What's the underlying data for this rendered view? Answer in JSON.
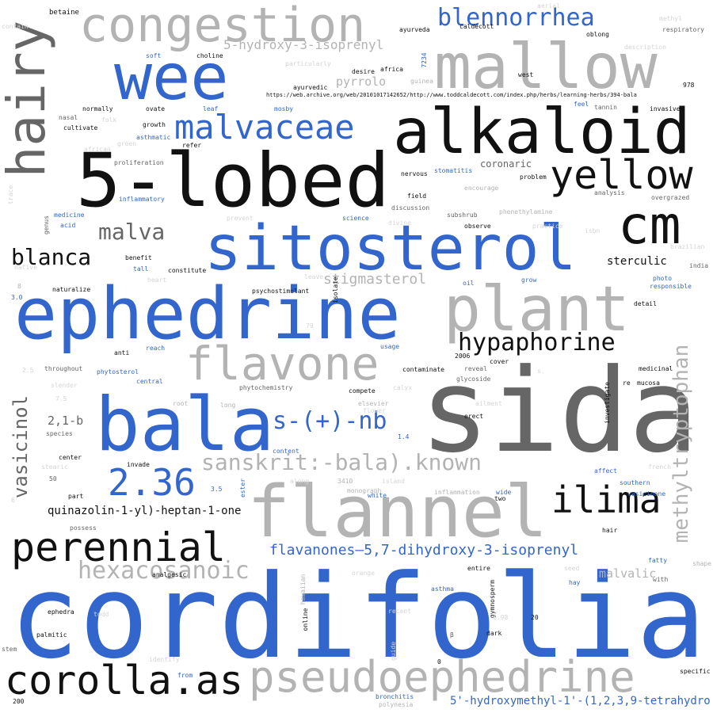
{
  "palette": {
    "blue": "#3366cc",
    "black": "#111111",
    "darkgray": "#666666",
    "gray": "#b3b3b3",
    "lightgray": "#d4d4d4"
  },
  "words": [
    {
      "text": "cordifolia",
      "color": "blue"
    },
    {
      "text": "sida",
      "color": "darkgray"
    },
    {
      "text": "5-lobed",
      "color": "black"
    },
    {
      "text": "ephedrine",
      "color": "blue"
    },
    {
      "text": "flannel",
      "color": "gray"
    },
    {
      "text": "sitosterol",
      "color": "blue"
    },
    {
      "text": "alkaloid",
      "color": "black"
    },
    {
      "text": "mallow",
      "color": "gray"
    },
    {
      "text": "bala",
      "color": "blue"
    },
    {
      "text": "wee",
      "color": "blue"
    },
    {
      "text": "hairy",
      "color": "darkgray"
    },
    {
      "text": "plant",
      "color": "gray"
    },
    {
      "text": "congestion",
      "color": "gray"
    },
    {
      "text": "pseudoephedrine",
      "color": "gray"
    },
    {
      "text": "cm",
      "color": "black"
    },
    {
      "text": "corolla.as",
      "color": "black"
    },
    {
      "text": "flavone",
      "color": "gray"
    },
    {
      "text": "yellow",
      "color": "black"
    },
    {
      "text": "malvaceae",
      "color": "blue"
    },
    {
      "text": "perennial",
      "color": "black"
    },
    {
      "text": "ilima",
      "color": "black"
    },
    {
      "text": "2.36",
      "color": "blue"
    },
    {
      "text": "blennorrhea",
      "color": "blue"
    },
    {
      "text": "hypaphorine",
      "color": "black"
    },
    {
      "text": "hexacosanoic",
      "color": "gray"
    },
    {
      "text": "s-(+)-nb",
      "color": "blue"
    },
    {
      "text": "sanskrit:-bala).known",
      "color": "gray"
    },
    {
      "text": "methyltryptophan",
      "color": "gray"
    },
    {
      "text": "vasicinol",
      "color": "darkgray"
    },
    {
      "text": "malva",
      "color": "darkgray"
    },
    {
      "text": "blanca",
      "color": "black"
    },
    {
      "text": "flavanones—5,7-dihydroxy-3-isoprenyl",
      "color": "blue"
    },
    {
      "text": "stigmasterol",
      "color": "gray"
    },
    {
      "text": "5-hydroxy-3-isoprenyl",
      "color": "gray"
    },
    {
      "text": "quinazolin-1-yl)-heptan-1-one",
      "color": "black"
    },
    {
      "text": "5'-hydroxymethyl-1'-(1,2,3,9-tetrahydro",
      "color": "blue"
    },
    {
      "text": "2,1-b",
      "color": "darkgray"
    },
    {
      "text": "malvalic",
      "color": "gray"
    },
    {
      "text": "pyrrolo",
      "color": "gray"
    },
    {
      "text": "sterculic",
      "color": "black"
    },
    {
      "text": "coronaric",
      "color": "darkgray"
    },
    {
      "text": "betaine",
      "color": "black"
    },
    {
      "text": "contain",
      "color": "lightgray"
    },
    {
      "text": "aerial",
      "color": "lightgray"
    },
    {
      "text": "methyl",
      "color": "lightgray"
    },
    {
      "text": "ayurveda",
      "color": "black"
    },
    {
      "text": "caldecott",
      "color": "black"
    },
    {
      "text": "oblong",
      "color": "black"
    },
    {
      "text": "respiratory",
      "color": "darkgray"
    },
    {
      "text": "description",
      "color": "lightgray"
    },
    {
      "text": "soft",
      "color": "blue"
    },
    {
      "text": "choline",
      "color": "black"
    },
    {
      "text": "7234",
      "color": "blue"
    },
    {
      "text": "africa",
      "color": "black"
    },
    {
      "text": "desire",
      "color": "black"
    },
    {
      "text": "particularly",
      "color": "lightgray"
    },
    {
      "text": "west",
      "color": "black"
    },
    {
      "text": "guinea",
      "color": "gray"
    },
    {
      "text": "ayurvedic",
      "color": "black"
    },
    {
      "text": "978",
      "color": "black"
    },
    {
      "text": "https://web.archive.org/web/20101017142652/http://www.toddcaldecott.com/index.php/herbs/learning-herbs/394-bala",
      "color": "black"
    },
    {
      "text": "leaf",
      "color": "blue"
    },
    {
      "text": "mosby",
      "color": "blue"
    },
    {
      "text": "feel",
      "color": "blue"
    },
    {
      "text": "tannin",
      "color": "darkgray"
    },
    {
      "text": "invasive",
      "color": "black"
    },
    {
      "text": "normally",
      "color": "black"
    },
    {
      "text": "ovate",
      "color": "black"
    },
    {
      "text": "nasal",
      "color": "darkgray"
    },
    {
      "text": "folk",
      "color": "lightgray"
    },
    {
      "text": "cultivate",
      "color": "black"
    },
    {
      "text": "growth",
      "color": "black"
    },
    {
      "text": "asthmatic",
      "color": "blue"
    },
    {
      "text": "green",
      "color": "lightgray"
    },
    {
      "text": "refer",
      "color": "black"
    },
    {
      "text": "african",
      "color": "lightgray"
    },
    {
      "text": "proliferation",
      "color": "darkgray"
    },
    {
      "text": "nervous",
      "color": "black"
    },
    {
      "text": "stomatitis",
      "color": "blue"
    },
    {
      "text": "problem",
      "color": "black"
    },
    {
      "text": "encourage",
      "color": "gray"
    },
    {
      "text": "analysis",
      "color": "darkgray"
    },
    {
      "text": "overgrazed",
      "color": "darkgray"
    },
    {
      "text": "trace",
      "color": "lightgray"
    },
    {
      "text": "inflammatory",
      "color": "blue"
    },
    {
      "text": "field",
      "color": "black"
    },
    {
      "text": "discussion",
      "color": "darkgray"
    },
    {
      "text": "genus",
      "color": "darkgray"
    },
    {
      "text": "medicine",
      "color": "blue"
    },
    {
      "text": "prevent",
      "color": "lightgray"
    },
    {
      "text": "science",
      "color": "blue"
    },
    {
      "text": "divine",
      "color": "lightgray"
    },
    {
      "text": "subshrub",
      "color": "darkgray"
    },
    {
      "text": "phenethylamine",
      "color": "gray"
    },
    {
      "text": "acid",
      "color": "blue"
    },
    {
      "text": "observe",
      "color": "black"
    },
    {
      "text": "practice",
      "color": "lightgray"
    },
    {
      "text": "isbn",
      "color": "lightgray"
    },
    {
      "text": "brazilian",
      "color": "lightgray"
    },
    {
      "text": "benefit",
      "color": "black"
    },
    {
      "text": "native",
      "color": "lightgray"
    },
    {
      "text": "tall",
      "color": "blue"
    },
    {
      "text": "constitute",
      "color": "black"
    },
    {
      "text": "india",
      "color": "darkgray"
    },
    {
      "text": "heart",
      "color": "lightgray"
    },
    {
      "text": "leave",
      "color": "lightgray"
    },
    {
      "text": "isolate",
      "color": "black"
    },
    {
      "text": "oil",
      "color": "blue"
    },
    {
      "text": "grow",
      "color": "blue"
    },
    {
      "text": "photo",
      "color": "blue"
    },
    {
      "text": "responsible",
      "color": "blue"
    },
    {
      "text": "8",
      "color": "gray"
    },
    {
      "text": "naturalize",
      "color": "black"
    },
    {
      "text": "psychostimulant",
      "color": "black"
    },
    {
      "text": "3.0",
      "color": "blue"
    },
    {
      "text": "79",
      "color": "lightgray"
    },
    {
      "text": "detail",
      "color": "black"
    },
    {
      "text": "anti",
      "color": "black"
    },
    {
      "text": "reach",
      "color": "blue"
    },
    {
      "text": "usage",
      "color": "blue"
    },
    {
      "text": "2006",
      "color": "black"
    },
    {
      "text": "cover",
      "color": "black"
    },
    {
      "text": "2.5",
      "color": "lightgray"
    },
    {
      "text": "throughout",
      "color": "darkgray"
    },
    {
      "text": "phytosterol",
      "color": "blue"
    },
    {
      "text": "contaminate",
      "color": "black"
    },
    {
      "text": "reveal",
      "color": "darkgray"
    },
    {
      "text": "s.",
      "color": "lightgray"
    },
    {
      "text": "medicinal",
      "color": "black"
    },
    {
      "text": "central",
      "color": "blue"
    },
    {
      "text": "glycoside",
      "color": "darkgray"
    },
    {
      "text": "re",
      "color": "black"
    },
    {
      "text": "mucosa",
      "color": "black"
    },
    {
      "text": "slender",
      "color": "lightgray"
    },
    {
      "text": "phytochemistry",
      "color": "darkgray"
    },
    {
      "text": "compete",
      "color": "black"
    },
    {
      "text": "calyx",
      "color": "lightgray"
    },
    {
      "text": "investigate",
      "color": "black"
    },
    {
      "text": "7.5",
      "color": "lightgray"
    },
    {
      "text": "root",
      "color": "gray"
    },
    {
      "text": "long",
      "color": "gray"
    },
    {
      "text": "elsevier",
      "color": "gray"
    },
    {
      "text": "flower",
      "color": "lightgray"
    },
    {
      "text": "ailment",
      "color": "lightgray"
    },
    {
      "text": "erect",
      "color": "black"
    },
    {
      "text": "species",
      "color": "darkgray"
    },
    {
      "text": "1.4",
      "color": "blue"
    },
    {
      "text": "center",
      "color": "black"
    },
    {
      "text": "content",
      "color": "blue"
    },
    {
      "text": "invade",
      "color": "black"
    },
    {
      "text": "stearic",
      "color": "lightgray"
    },
    {
      "text": "french",
      "color": "lightgray"
    },
    {
      "text": "affect",
      "color": "blue"
    },
    {
      "text": "50",
      "color": "darkgray"
    },
    {
      "text": "along",
      "color": "lightgray"
    },
    {
      "text": "3410",
      "color": "gray"
    },
    {
      "text": "island",
      "color": "lightgray"
    },
    {
      "text": "southern",
      "color": "blue"
    },
    {
      "text": "part",
      "color": "black"
    },
    {
      "text": "3.5",
      "color": "blue"
    },
    {
      "text": "ester",
      "color": "blue"
    },
    {
      "text": "monograph",
      "color": "gray"
    },
    {
      "text": "inflammation",
      "color": "gray"
    },
    {
      "text": "wide",
      "color": "blue"
    },
    {
      "text": "two",
      "color": "black"
    },
    {
      "text": "6",
      "color": "lightgray"
    },
    {
      "text": "white",
      "color": "blue"
    },
    {
      "text": "vasicinone",
      "color": "blue"
    },
    {
      "text": "possess",
      "color": "darkgray"
    },
    {
      "text": "hair",
      "color": "black"
    },
    {
      "text": "fatty",
      "color": "blue"
    },
    {
      "text": "shape",
      "color": "gray"
    },
    {
      "text": "orange",
      "color": "lightgray"
    },
    {
      "text": "entire",
      "color": "black"
    },
    {
      "text": "seed",
      "color": "lightgray"
    },
    {
      "text": "analgesic",
      "color": "black"
    },
    {
      "text": "hawaiian",
      "color": "gray"
    },
    {
      "text": "gymnosperm",
      "color": "black"
    },
    {
      "text": "hay",
      "color": "blue"
    },
    {
      "text": "with",
      "color": "darkgray"
    },
    {
      "text": "asthma",
      "color": "blue"
    },
    {
      "text": "ephedra",
      "color": "black"
    },
    {
      "text": "todd",
      "color": "lightgray"
    },
    {
      "text": "recent",
      "color": "lightgray"
    },
    {
      "text": "0.98",
      "color": "lightgray"
    },
    {
      "text": "20",
      "color": "black"
    },
    {
      "text": "australia",
      "color": "blue"
    },
    {
      "text": "online",
      "color": "black"
    },
    {
      "text": "palmitic",
      "color": "black"
    },
    {
      "text": "dark",
      "color": "black"
    },
    {
      "text": "β",
      "color": "darkgray"
    },
    {
      "text": "stem",
      "color": "darkgray"
    },
    {
      "text": "guide",
      "color": "lightgray"
    },
    {
      "text": "identify",
      "color": "lightgray"
    },
    {
      "text": "0",
      "color": "black"
    },
    {
      "text": "from",
      "color": "blue"
    },
    {
      "text": "specific",
      "color": "black"
    },
    {
      "text": "200",
      "color": "black"
    },
    {
      "text": "bronchitis",
      "color": "blue"
    },
    {
      "text": "polynesia",
      "color": "gray"
    }
  ]
}
